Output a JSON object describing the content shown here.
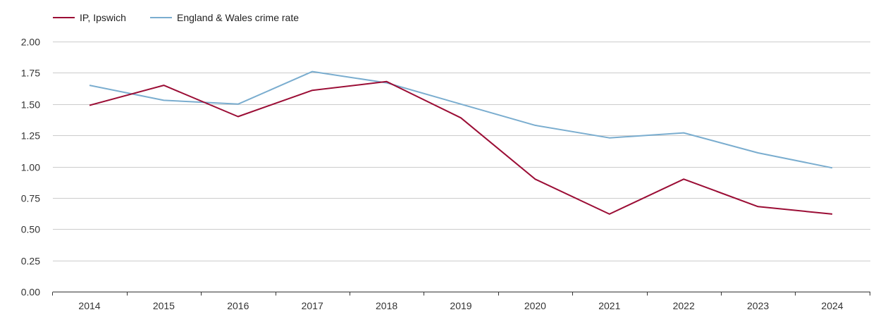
{
  "chart_data": {
    "type": "line",
    "title": "",
    "xlabel": "",
    "ylabel": "",
    "categories": [
      "2014",
      "2015",
      "2016",
      "2017",
      "2018",
      "2019",
      "2020",
      "2021",
      "2022",
      "2023",
      "2024"
    ],
    "series": [
      {
        "name": "IP, Ipswich",
        "color": "#9b0d35",
        "values": [
          1.49,
          1.65,
          1.4,
          1.61,
          1.68,
          1.39,
          0.9,
          0.62,
          0.9,
          0.68,
          0.62
        ]
      },
      {
        "name": "England & Wales crime rate",
        "color": "#7aadcf",
        "values": [
          1.65,
          1.53,
          1.5,
          1.76,
          1.67,
          1.5,
          1.33,
          1.23,
          1.27,
          1.11,
          0.99
        ]
      }
    ],
    "ylim": [
      0,
      2
    ],
    "yticks": [
      "0.00",
      "0.25",
      "0.50",
      "0.75",
      "1.00",
      "1.25",
      "1.50",
      "1.75",
      "2.00"
    ],
    "grid": true,
    "legend_position": "top-left"
  }
}
